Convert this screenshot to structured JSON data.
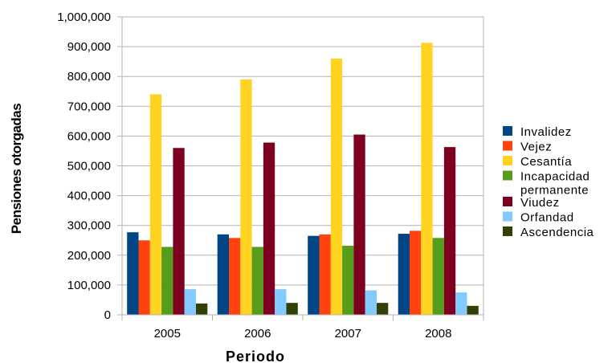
{
  "chart_data": {
    "type": "bar",
    "xlabel": "Periodo",
    "ylabel": "Pensiones otorgadas",
    "categories": [
      "2005",
      "2006",
      "2007",
      "2008"
    ],
    "ylim": [
      0,
      1000000
    ],
    "yticks": [
      0,
      100000,
      200000,
      300000,
      400000,
      500000,
      600000,
      700000,
      800000,
      900000,
      1000000
    ],
    "ytick_labels": [
      "0",
      "100,000",
      "200,000",
      "300,000",
      "400,000",
      "500,000",
      "600,000",
      "700,000",
      "800,000",
      "900,000",
      "1,000,000"
    ],
    "grid": true,
    "legend_position": "right",
    "series": [
      {
        "name": "Invalidez",
        "legend_lines": [
          "Invalidez"
        ],
        "color": "#004586",
        "values": [
          277000,
          270000,
          265000,
          272000
        ]
      },
      {
        "name": "Vejez",
        "legend_lines": [
          "Vejez"
        ],
        "color": "#ff420e",
        "values": [
          250000,
          258000,
          270000,
          282000
        ]
      },
      {
        "name": "Cesantía",
        "legend_lines": [
          "Cesantía"
        ],
        "color": "#ffd320",
        "values": [
          740000,
          790000,
          860000,
          913000
        ]
      },
      {
        "name": "Incapacidad permanente",
        "legend_lines": [
          "Incapacidad",
          "permanente"
        ],
        "color": "#579d1c",
        "values": [
          228000,
          228000,
          232000,
          258000
        ]
      },
      {
        "name": "Viudez",
        "legend_lines": [
          "Viudez"
        ],
        "color": "#7e0021",
        "values": [
          560000,
          578000,
          605000,
          563000
        ]
      },
      {
        "name": "Orfandad",
        "legend_lines": [
          "Orfandad"
        ],
        "color": "#83caff",
        "values": [
          86000,
          86000,
          82000,
          75000
        ]
      },
      {
        "name": "Ascendencia",
        "legend_lines": [
          "Ascendencia"
        ],
        "color": "#314004",
        "values": [
          38000,
          40000,
          40000,
          30000
        ]
      }
    ]
  }
}
